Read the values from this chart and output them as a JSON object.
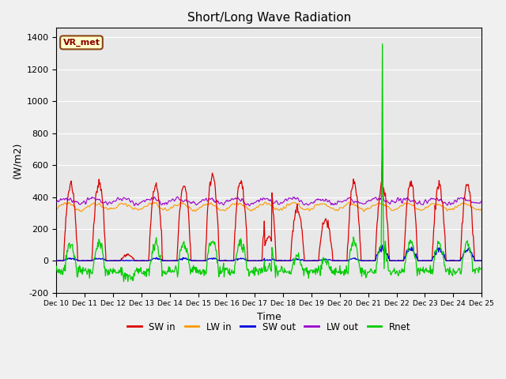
{
  "title": "Short/Long Wave Radiation",
  "ylabel": "(W/m2)",
  "xlabel": "Time",
  "ylim": [
    -200,
    1460
  ],
  "yticks": [
    -200,
    0,
    200,
    400,
    600,
    800,
    1000,
    1200,
    1400
  ],
  "station_label": "VR_met",
  "xtick_labels": [
    "Dec 10",
    "Dec 11",
    "Dec 12",
    "Dec 13",
    "Dec 14",
    "Dec 15",
    "Dec 16",
    "Dec 17",
    "Dec 18",
    "Dec 19",
    "Dec 20",
    "Dec 21",
    "Dec 22",
    "Dec 23",
    "Dec 24",
    "Dec 25"
  ],
  "colors": {
    "SW_in": "#dd0000",
    "LW_in": "#ff9900",
    "SW_out": "#0000dd",
    "LW_out": "#9900cc",
    "Rnet": "#00cc00"
  },
  "legend_labels": [
    "SW in",
    "LW in",
    "SW out",
    "LW out",
    "Rnet"
  ],
  "background_color": "#e8e8e8",
  "figure_background": "#f0f0f0"
}
